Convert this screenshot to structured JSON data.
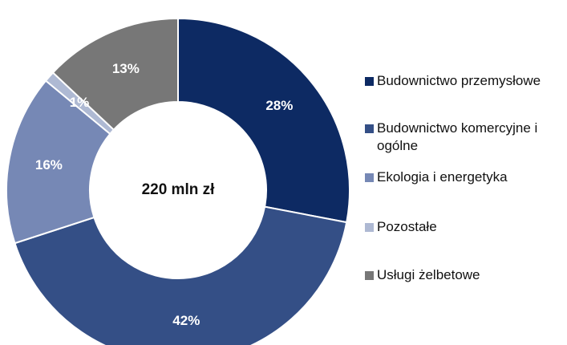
{
  "chart_data": {
    "type": "pie",
    "center_label": "220 mln zł",
    "categories": [
      "Budownictwo przemysłowe",
      "Budownictwo komercyjne i ogólne",
      "Ekologia i energetyka",
      "Pozostałe",
      "Usługi żelbetowe"
    ],
    "values": [
      28,
      42,
      16,
      1,
      13
    ],
    "value_labels": [
      "28%",
      "42%",
      "16%",
      "1%",
      "13%"
    ],
    "colors": [
      "#0d2a63",
      "#344f86",
      "#7688b5",
      "#aeb9d3",
      "#777777"
    ],
    "legend": "right"
  }
}
